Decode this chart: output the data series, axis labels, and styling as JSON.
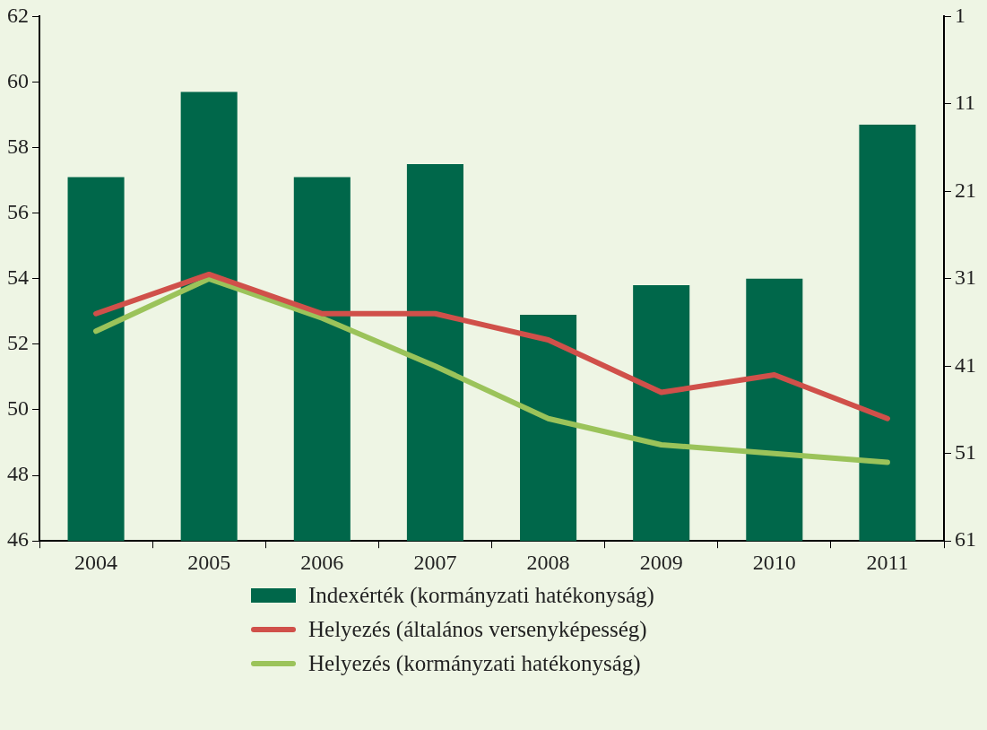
{
  "chart_data": {
    "type": "bar",
    "categories": [
      "2004",
      "2005",
      "2006",
      "2007",
      "2008",
      "2009",
      "2010",
      "2011"
    ],
    "series": [
      {
        "name": "Indexérték (kormányzati hatékonyság)",
        "color": "#00674a",
        "values": [
          57.1,
          59.7,
          57.1,
          57.5,
          52.9,
          53.8,
          54.0,
          58.7
        ]
      },
      {
        "name": "Helyezés (általános versenyképesség)",
        "type": "line",
        "axis": "y2",
        "color": "#d0504a",
        "values": [
          35,
          30.5,
          35,
          35,
          38,
          44,
          42,
          47
        ]
      },
      {
        "name": "Helyezés (kormányzati hatékonyság)",
        "type": "line",
        "axis": "y2",
        "color": "#9bc35a",
        "values": [
          37,
          31,
          35.5,
          41,
          47,
          50,
          51,
          52
        ]
      }
    ],
    "ylim": [
      46,
      62
    ],
    "yticks": [
      46,
      48,
      50,
      52,
      54,
      56,
      58,
      60,
      62
    ],
    "y2lim": [
      61,
      1
    ],
    "y2ticks": [
      1,
      11,
      21,
      31,
      41,
      51,
      61
    ],
    "grid": false,
    "legend": "bottom",
    "marker": "none",
    "line_style": "solid"
  }
}
